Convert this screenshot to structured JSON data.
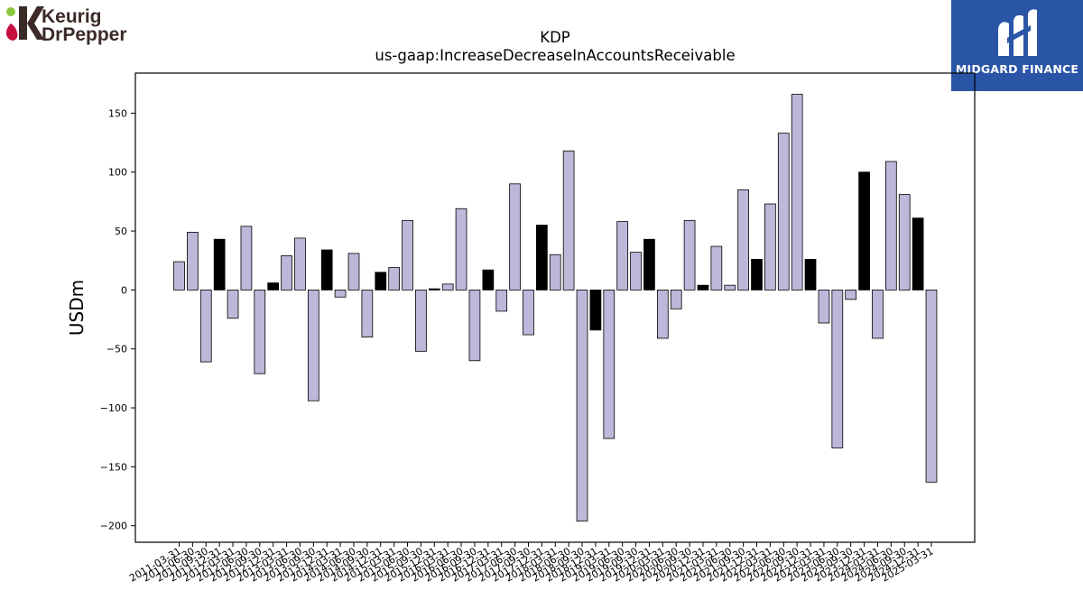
{
  "header": {
    "company_logo": {
      "line1": "Keurig",
      "line2": "DrPepper",
      "colors": {
        "text": "#3b2a28",
        "accent_green": "#8cc63f",
        "accent_red": "#c8103e"
      }
    },
    "brand_logo": {
      "text": "MIDGARD FINANCE",
      "background": "#2a55a7"
    }
  },
  "chart_data": {
    "type": "bar",
    "title": "KDP",
    "subtitle": "us-gaap:IncreaseDecreaseInAccountsReceivable",
    "xlabel": "",
    "ylabel": "USDm",
    "ylim": [
      -214,
      184
    ],
    "yticks": [
      150,
      100,
      50,
      0,
      -50,
      -100,
      -150,
      -200
    ],
    "grid": false,
    "colors": {
      "quarter": "#bcb8d9",
      "annual": "#000000",
      "edge": "#000000"
    },
    "categories": [
      "2011-03-31",
      "2011-06-30",
      "2011-09-30",
      "2011-12-31",
      "2012-03-31",
      "2012-06-30",
      "2012-09-30",
      "2012-12-31",
      "2013-03-31",
      "2013-06-30",
      "2013-09-30",
      "2013-12-31",
      "2014-03-31",
      "2014-06-30",
      "2014-09-30",
      "2014-12-31",
      "2015-03-31",
      "2015-06-30",
      "2015-09-30",
      "2015-12-31",
      "2016-03-31",
      "2016-06-30",
      "2016-09-30",
      "2016-12-31",
      "2017-03-31",
      "2017-06-30",
      "2017-09-30",
      "2017-12-31",
      "2018-03-31",
      "2018-06-30",
      "2018-09-30",
      "2018-12-31",
      "2019-03-31",
      "2019-06-30",
      "2019-09-30",
      "2019-12-31",
      "2020-03-31",
      "2020-06-30",
      "2020-09-30",
      "2020-12-31",
      "2021-03-31",
      "2021-06-30",
      "2021-09-30",
      "2021-12-31",
      "2022-03-31",
      "2022-06-30",
      "2022-09-30",
      "2022-12-31",
      "2023-03-31",
      "2023-06-30",
      "2023-09-30",
      "2023-12-31",
      "2024-03-31",
      "2024-06-30",
      "2024-09-30",
      "2024-12-31",
      "2025-03-31"
    ],
    "tick_labels": [
      "2011-03-31",
      "2011-06-30",
      "2011-09-30",
      "2011-12-31",
      "2012-03-31",
      "2012-06-30",
      "2012-09-30",
      "2012-12-31",
      "2013-03-31",
      "2013-06-30",
      "2013-09-30",
      "2013-12-31",
      "2014-03-31",
      "2014-06-30",
      "2014-09-30",
      "2014-12-31",
      "2015-03-31",
      "2015-06-30",
      "2015-09-30",
      "2015-12-31",
      "2016-03-31",
      "2016-06-30",
      "2016-09-30",
      "2016-12-31",
      "2017-03-31",
      "2017-06-30",
      "2017-09-30",
      "2017-12-31",
      "2018-03-31",
      "2018-06-30",
      "2018-09-30",
      "2018-12-31",
      "2019-03-31",
      "2019-06-30",
      "2019-09-30",
      "2019-12-31",
      "2020-03-31",
      "2020-06-30",
      "2020-09-30",
      "2020-12-31",
      "2021-03-31",
      "2021-06-30",
      "2021-09-30",
      "2021-12-31",
      "2022-03-31",
      "2022-06-30",
      "2022-09-30",
      "2022-12-31",
      "2023-03-31",
      "2023-06-30",
      "2023-09-30",
      "2023-12-31",
      "2024-03-31",
      "2024-06-30",
      "2024-09-30",
      "2024-12-31",
      "2025-03-31"
    ],
    "values": [
      24,
      49,
      -61,
      43,
      -24,
      54,
      -71,
      6,
      29,
      44,
      -94,
      34,
      -6,
      31,
      -40,
      15,
      19,
      59,
      -52,
      1,
      5,
      69,
      -60,
      17,
      -18,
      90,
      -38,
      55,
      30,
      118,
      -196,
      -34,
      -126,
      58,
      32,
      43,
      -41,
      -16,
      59,
      4,
      37,
      4,
      85,
      26,
      73,
      133,
      166,
      26,
      -28,
      -134,
      -8,
      100,
      -41,
      109,
      81,
      61,
      -163
    ],
    "is_annual": [
      false,
      false,
      false,
      true,
      false,
      false,
      false,
      true,
      false,
      false,
      false,
      true,
      false,
      false,
      false,
      true,
      false,
      false,
      false,
      true,
      false,
      false,
      false,
      true,
      false,
      false,
      false,
      true,
      false,
      false,
      false,
      true,
      false,
      false,
      false,
      true,
      false,
      false,
      false,
      true,
      false,
      false,
      false,
      true,
      false,
      false,
      false,
      true,
      false,
      false,
      false,
      true,
      false,
      false,
      false,
      true,
      false
    ]
  }
}
